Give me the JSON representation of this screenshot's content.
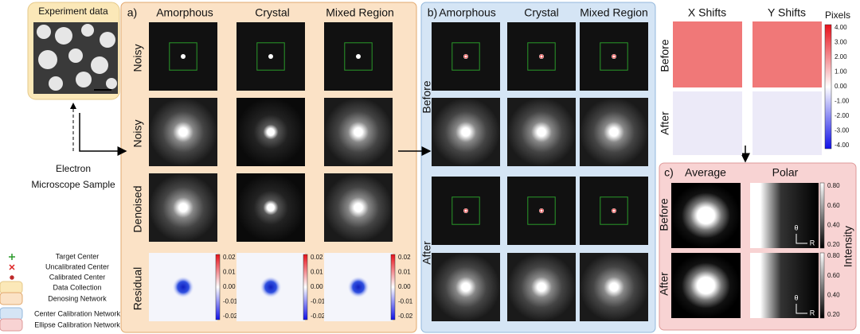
{
  "input": {
    "title": "Experiment data",
    "sample_label": [
      "Electron",
      "Microscope Sample"
    ]
  },
  "panel_a": {
    "label": "a)",
    "columns": [
      "Amorphous",
      "Crystal",
      "Mixed Region"
    ],
    "rows": [
      "Noisy",
      "Noisy",
      "Denoised",
      "Residual"
    ],
    "residual_colorbar_ticks": [
      "0.02",
      "0.01",
      "0.00",
      "-0.01",
      "-0.02"
    ]
  },
  "panel_b": {
    "label": "b)",
    "columns": [
      "Amorphous",
      "Crystal",
      "Mixed Region"
    ],
    "rows": [
      "Before",
      "After"
    ]
  },
  "shifts": {
    "columns": [
      "X Shifts",
      "Y Shifts"
    ],
    "rows": [
      "Before",
      "After"
    ],
    "colorbar_title": "Pixels",
    "colorbar_ticks": [
      "4.00",
      "3.00",
      "2.00",
      "1.00",
      "0.00",
      "-1.00",
      "-2.00",
      "-3.00",
      "-4.00"
    ]
  },
  "panel_c": {
    "label": "c)",
    "columns": [
      "Average",
      "Polar"
    ],
    "rows": [
      "Before",
      "After"
    ],
    "colorbar_title": "Intensity",
    "colorbar_ticks": [
      "0.80",
      "0.60",
      "0.40",
      "0.20"
    ],
    "polar_axes": [
      "θ",
      "R"
    ]
  },
  "legend": [
    "Target Center",
    "Uncalibrated Center",
    "Calibrated Center",
    "Data Collection",
    "Denosing Network",
    "Center Calibration Network",
    "Ellipse Calibration Network"
  ]
}
